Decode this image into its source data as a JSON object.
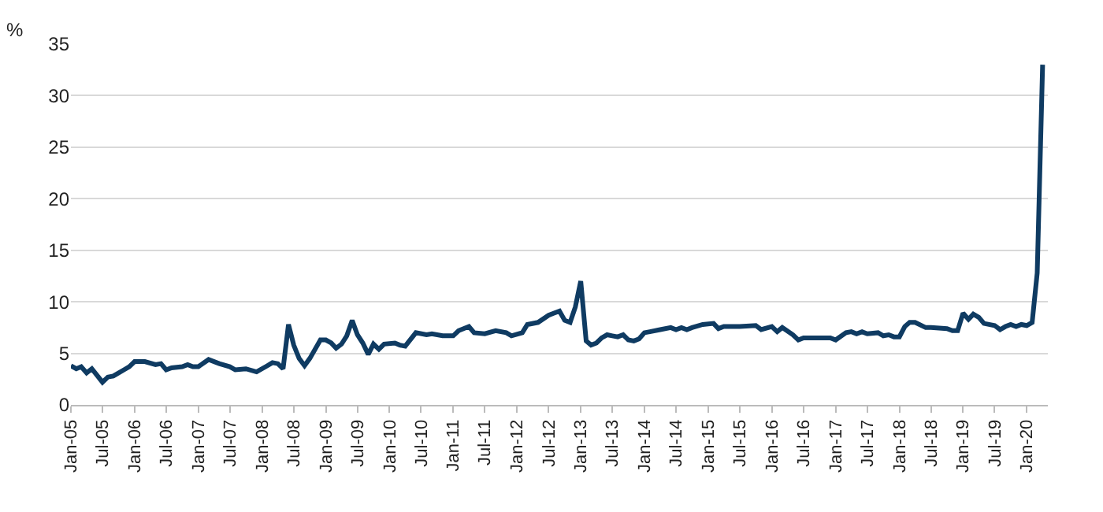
{
  "chart_data": {
    "type": "line",
    "ylabel": "%",
    "grid": "y",
    "marker": "none",
    "line_style": "solid",
    "xlim": [
      "2005-01",
      "2020-05"
    ],
    "ylim": [
      0,
      35
    ],
    "yticks": [
      0,
      5,
      10,
      15,
      20,
      25,
      30,
      35
    ],
    "xticks": [
      {
        "value": "2005-01",
        "label": "Jan-05"
      },
      {
        "value": "2005-07",
        "label": "Jul-05"
      },
      {
        "value": "2006-01",
        "label": "Jan-06"
      },
      {
        "value": "2006-07",
        "label": "Jul-06"
      },
      {
        "value": "2007-01",
        "label": "Jan-07"
      },
      {
        "value": "2007-07",
        "label": "Jul-07"
      },
      {
        "value": "2008-01",
        "label": "Jan-08"
      },
      {
        "value": "2008-07",
        "label": "Jul-08"
      },
      {
        "value": "2009-01",
        "label": "Jan-09"
      },
      {
        "value": "2009-07",
        "label": "Jul-09"
      },
      {
        "value": "2010-01",
        "label": "Jan-10"
      },
      {
        "value": "2010-07",
        "label": "Jul-10"
      },
      {
        "value": "2011-01",
        "label": "Jan-11"
      },
      {
        "value": "2011-07",
        "label": "Jul-11"
      },
      {
        "value": "2012-01",
        "label": "Jan-12"
      },
      {
        "value": "2012-07",
        "label": "Jul-12"
      },
      {
        "value": "2013-01",
        "label": "Jan-13"
      },
      {
        "value": "2013-07",
        "label": "Jul-13"
      },
      {
        "value": "2014-01",
        "label": "Jan-14"
      },
      {
        "value": "2014-07",
        "label": "Jul-14"
      },
      {
        "value": "2015-01",
        "label": "Jan-15"
      },
      {
        "value": "2015-07",
        "label": "Jul-15"
      },
      {
        "value": "2016-01",
        "label": "Jan-16"
      },
      {
        "value": "2016-07",
        "label": "Jul-16"
      },
      {
        "value": "2017-01",
        "label": "Jan-17"
      },
      {
        "value": "2017-07",
        "label": "Jul-17"
      },
      {
        "value": "2018-01",
        "label": "Jan-18"
      },
      {
        "value": "2018-07",
        "label": "Jul-18"
      },
      {
        "value": "2019-01",
        "label": "Jan-19"
      },
      {
        "value": "2019-07",
        "label": "Jul-19"
      },
      {
        "value": "2020-01",
        "label": "Jan-20"
      }
    ],
    "series": [
      {
        "color": "#0f3b62",
        "x": [
          "2005-01",
          "2005-02",
          "2005-03",
          "2005-04",
          "2005-05",
          "2005-07",
          "2005-08",
          "2005-09",
          "2005-11",
          "2005-12",
          "2006-01",
          "2006-03",
          "2006-05",
          "2006-06",
          "2006-07",
          "2006-08",
          "2006-10",
          "2006-11",
          "2006-12",
          "2007-01",
          "2007-03",
          "2007-05",
          "2007-07",
          "2007-08",
          "2007-10",
          "2007-12",
          "2008-02",
          "2008-03",
          "2008-04",
          "2008-05",
          "2008-06",
          "2008-07",
          "2008-08",
          "2008-09",
          "2008-10",
          "2008-12",
          "2009-01",
          "2009-02",
          "2009-03",
          "2009-04",
          "2009-05",
          "2009-06",
          "2009-07",
          "2009-08",
          "2009-09",
          "2009-10",
          "2009-11",
          "2009-12",
          "2010-02",
          "2010-03",
          "2010-04",
          "2010-06",
          "2010-08",
          "2010-09",
          "2010-11",
          "2011-01",
          "2011-02",
          "2011-04",
          "2011-05",
          "2011-07",
          "2011-09",
          "2011-11",
          "2011-12",
          "2012-02",
          "2012-03",
          "2012-05",
          "2012-07",
          "2012-08",
          "2012-09",
          "2012-10",
          "2012-11",
          "2012-12",
          "2013-01",
          "2013-02",
          "2013-03",
          "2013-04",
          "2013-05",
          "2013-06",
          "2013-07",
          "2013-08",
          "2013-09",
          "2013-10",
          "2013-11",
          "2013-12",
          "2014-01",
          "2014-02",
          "2014-04",
          "2014-06",
          "2014-07",
          "2014-08",
          "2014-09",
          "2014-10",
          "2014-12",
          "2015-02",
          "2015-03",
          "2015-04",
          "2015-07",
          "2015-10",
          "2015-11",
          "2016-01",
          "2016-02",
          "2016-03",
          "2016-05",
          "2016-06",
          "2016-07",
          "2016-12",
          "2017-01",
          "2017-03",
          "2017-04",
          "2017-05",
          "2017-06",
          "2017-07",
          "2017-09",
          "2017-10",
          "2017-11",
          "2017-12",
          "2018-01",
          "2018-02",
          "2018-03",
          "2018-04",
          "2018-06",
          "2018-07",
          "2018-10",
          "2018-11",
          "2018-12",
          "2019-01",
          "2019-02",
          "2019-03",
          "2019-04",
          "2019-05",
          "2019-07",
          "2019-08",
          "2019-09",
          "2019-10",
          "2019-11",
          "2019-12",
          "2020-01",
          "2020-02",
          "2020-03",
          "2020-04"
        ],
        "values": [
          3.8,
          3.5,
          3.7,
          3.1,
          3.5,
          2.2,
          2.7,
          2.8,
          3.4,
          3.7,
          4.2,
          4.2,
          3.9,
          4.0,
          3.4,
          3.6,
          3.7,
          3.9,
          3.7,
          3.7,
          4.4,
          4.0,
          3.7,
          3.4,
          3.5,
          3.2,
          3.8,
          4.1,
          4.0,
          3.5,
          7.8,
          5.8,
          4.5,
          3.8,
          4.5,
          6.3,
          6.3,
          6.0,
          5.5,
          5.9,
          6.7,
          8.2,
          6.8,
          6.0,
          4.9,
          5.9,
          5.4,
          5.9,
          6.0,
          5.8,
          5.7,
          7.0,
          6.8,
          6.9,
          6.7,
          6.7,
          7.2,
          7.6,
          7.0,
          6.9,
          7.2,
          7.0,
          6.7,
          7.0,
          7.8,
          8.0,
          8.7,
          8.9,
          9.1,
          8.2,
          8.0,
          9.5,
          12.0,
          6.2,
          5.8,
          6.0,
          6.5,
          6.8,
          6.7,
          6.6,
          6.8,
          6.3,
          6.2,
          6.4,
          7.0,
          7.1,
          7.3,
          7.5,
          7.3,
          7.5,
          7.3,
          7.5,
          7.8,
          7.9,
          7.4,
          7.6,
          7.6,
          7.7,
          7.3,
          7.6,
          7.1,
          7.5,
          6.8,
          6.3,
          6.5,
          6.5,
          6.3,
          7.0,
          7.1,
          6.9,
          7.1,
          6.9,
          7.0,
          6.7,
          6.8,
          6.6,
          6.6,
          7.6,
          8.0,
          8.0,
          7.5,
          7.5,
          7.4,
          7.2,
          7.2,
          8.9,
          8.3,
          8.8,
          8.5,
          7.9,
          7.7,
          7.3,
          7.6,
          7.8,
          7.6,
          7.8,
          7.7,
          8.0,
          12.8,
          33.0
        ]
      }
    ]
  }
}
